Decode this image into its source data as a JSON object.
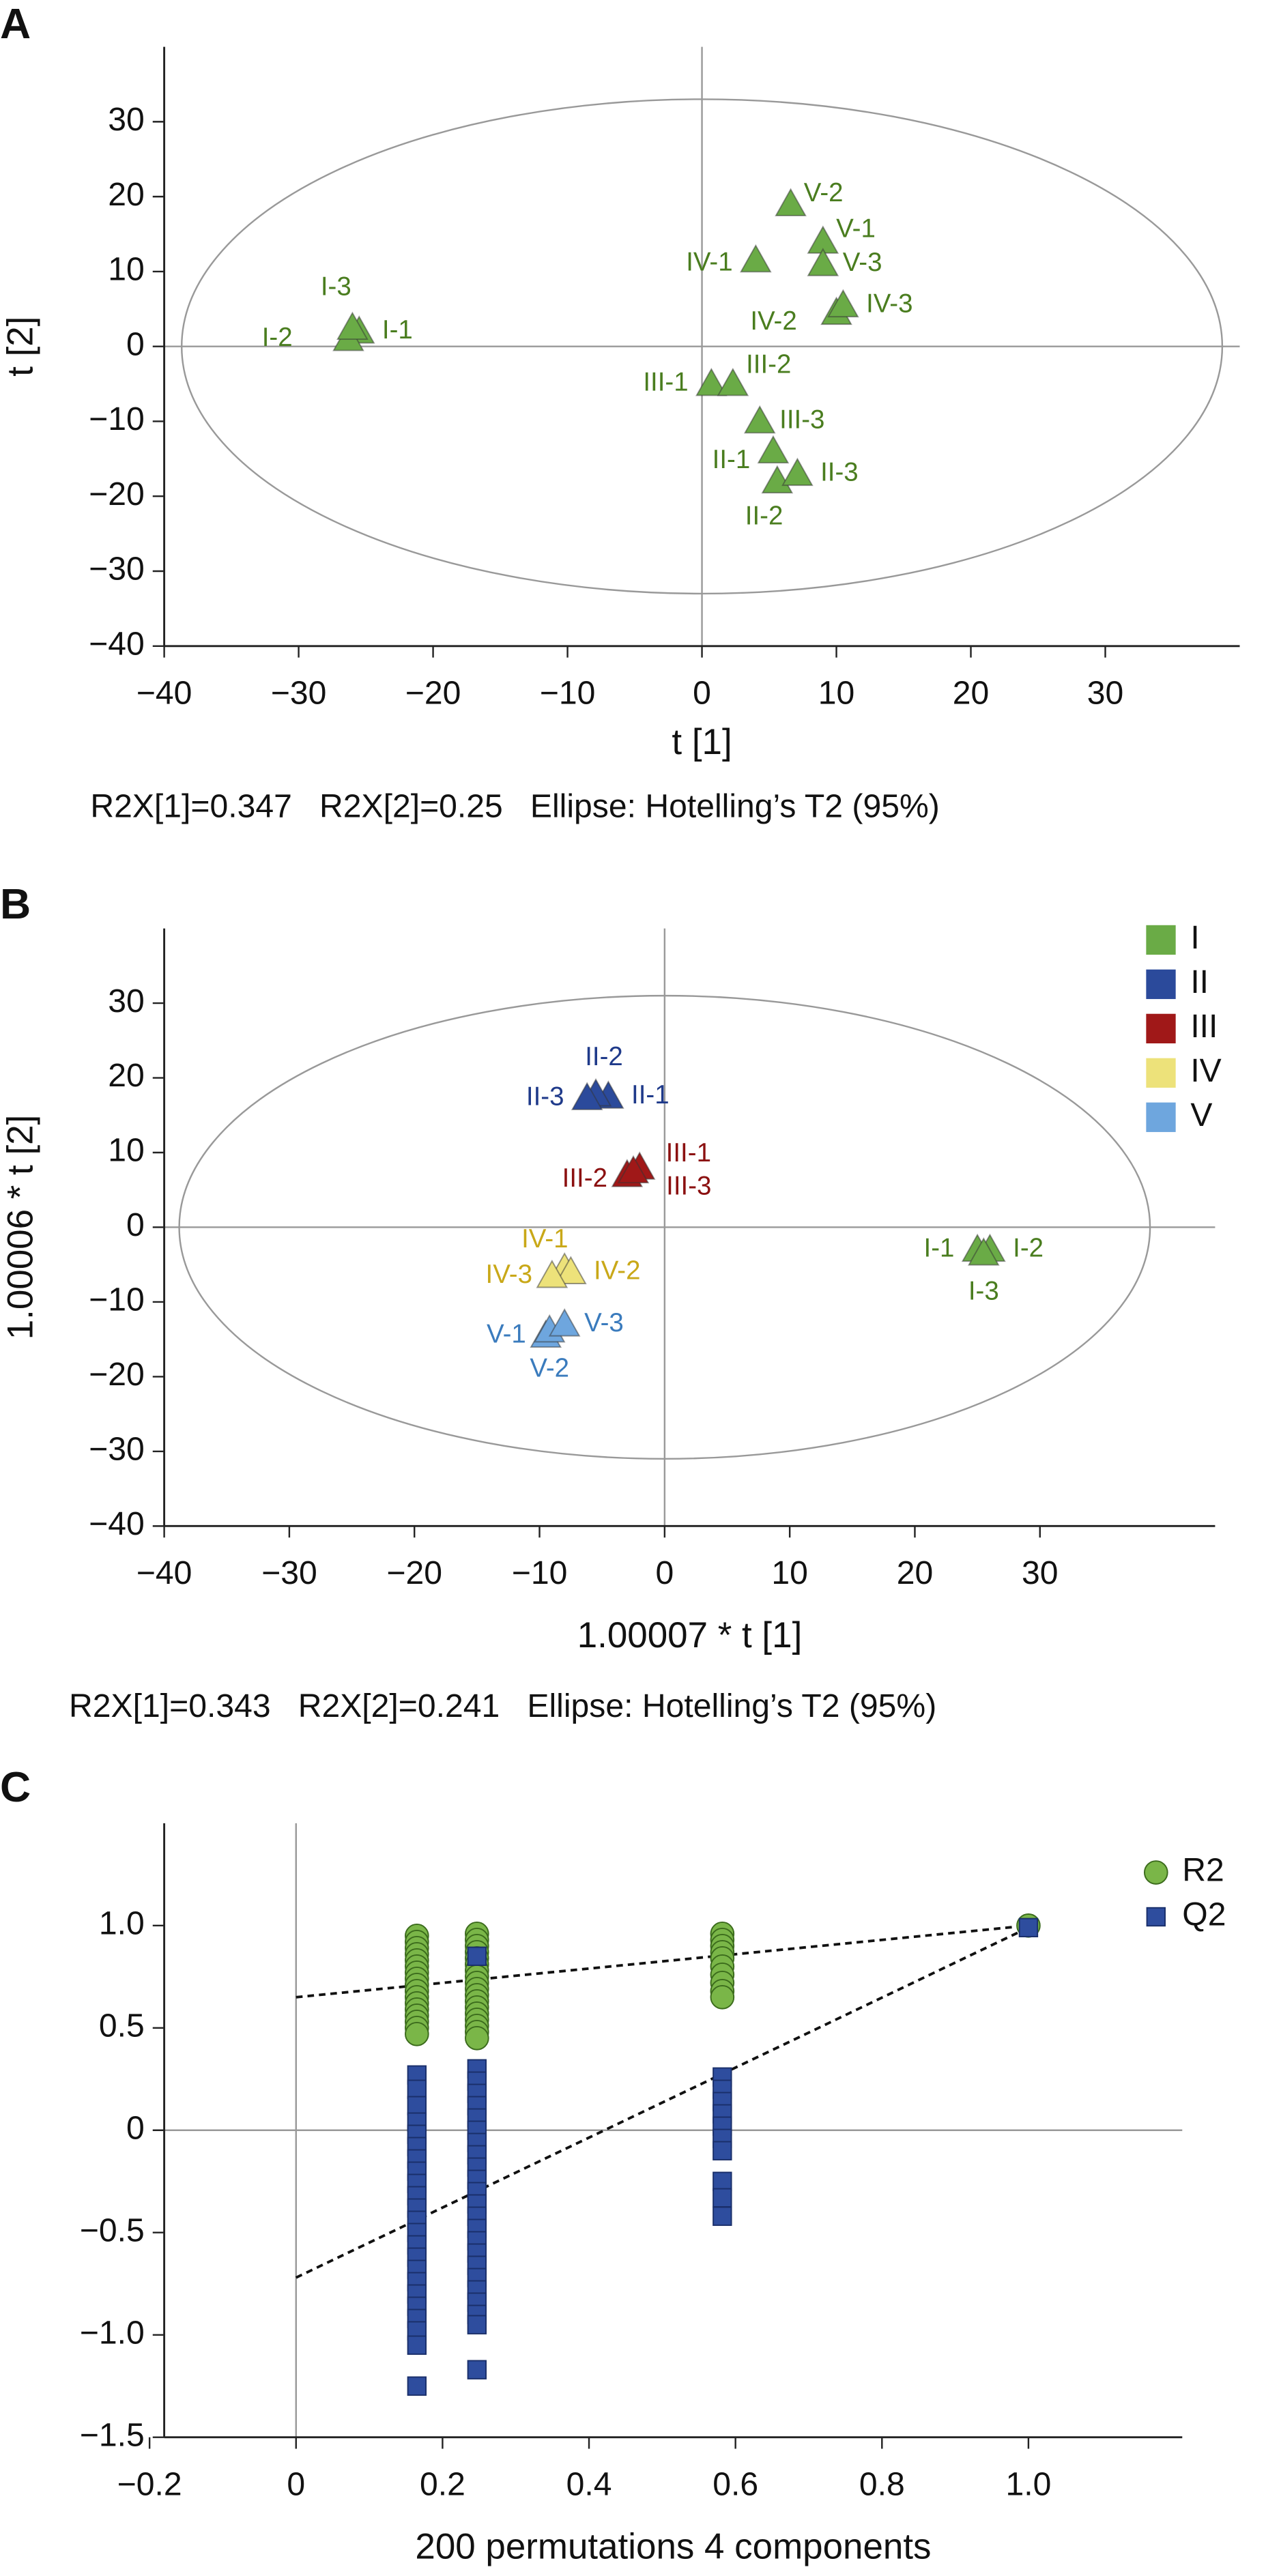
{
  "chart_data": [
    {
      "type": "scatter",
      "panel": "A",
      "x_label": "t [1]",
      "y_label": "t [2]",
      "caption": "R2X[1]=0.347   R2X[2]=0.25   Ellipse: Hotelling’s T2 (95%)",
      "xlim": [
        -40,
        40
      ],
      "ylim": [
        -40,
        40
      ],
      "xticks": [
        {
          "value": -40,
          "label": "−40"
        },
        {
          "value": -30,
          "label": "−30"
        },
        {
          "value": -20,
          "label": "−20"
        },
        {
          "value": -10,
          "label": "−10"
        },
        0,
        10,
        20,
        30
      ],
      "yticks": [
        {
          "value": -40,
          "label": "−40"
        },
        {
          "value": -30,
          "label": "−30"
        },
        {
          "value": -20,
          "label": "−20"
        },
        {
          "value": -10,
          "label": "−10"
        },
        0,
        10,
        20,
        30
      ],
      "ellipse_radii": [
        38.7,
        33
      ],
      "series": [
        {
          "color": "#6aab46",
          "label_color": "#4a7d1f",
          "marker": "triangle",
          "labels": [
            "I-1",
            "I-2",
            "I-3",
            "II-1",
            "II-2",
            "II-3",
            "III-1",
            "III-2",
            "III-3",
            "IV-1",
            "IV-2",
            "IV-3",
            "V-1",
            "V-2",
            "V-3"
          ],
          "x": [
            -25.5,
            -26.3,
            -26,
            5.3,
            5.6,
            7.1,
            0.7,
            2.3,
            4.3,
            4,
            10,
            10.5,
            9,
            6.6,
            9
          ],
          "values": [
            2,
            1,
            2.5,
            -14,
            -18,
            -17,
            -5,
            -5,
            -10,
            11.5,
            4.5,
            5.5,
            14,
            19,
            11
          ]
        }
      ]
    },
    {
      "type": "scatter",
      "panel": "B",
      "x_label": "1.00007 * t [1]",
      "y_label": "1.00006 * t [2]",
      "caption": "R2X[1]=0.343   R2X[2]=0.241   Ellipse: Hotelling’s T2 (95%)",
      "xlim": [
        -40,
        44
      ],
      "ylim": [
        -40,
        40
      ],
      "xticks": [
        {
          "value": -40,
          "label": "−40"
        },
        {
          "value": -30,
          "label": "−30"
        },
        {
          "value": -20,
          "label": "−20"
        },
        {
          "value": -10,
          "label": "−10"
        },
        0,
        10,
        20,
        30
      ],
      "yticks": [
        {
          "value": -40,
          "label": "−40"
        },
        {
          "value": -30,
          "label": "−30"
        },
        {
          "value": -20,
          "label": "−20"
        },
        {
          "value": -10,
          "label": "−10"
        },
        0,
        10,
        20,
        30
      ],
      "ellipse_radii": [
        38.8,
        31
      ],
      "legend": "top-right",
      "series": [
        {
          "name": "I",
          "color": "#6aab46",
          "label_color": "#4a7d1f",
          "marker": "triangle",
          "labels": [
            "I-1",
            "I-2",
            "I-3"
          ],
          "x": [
            25,
            26,
            25.5
          ],
          "values": [
            -3,
            -3,
            -3.5
          ]
        },
        {
          "name": "II",
          "color": "#2b4a9b",
          "label_color": "#1f3a8a",
          "marker": "triangle",
          "labels": [
            "II-1",
            "II-2",
            "II-3"
          ],
          "x": [
            -4.5,
            -5.5,
            -6.2
          ],
          "values": [
            17.5,
            17.8,
            17.3
          ]
        },
        {
          "name": "III",
          "color": "#a01818",
          "label_color": "#8b1010",
          "marker": "triangle",
          "labels": [
            "III-1",
            "III-2",
            "III-3"
          ],
          "x": [
            -2,
            -3,
            -2.5
          ],
          "values": [
            8,
            7,
            7.5
          ]
        },
        {
          "name": "IV",
          "color": "#ede27a",
          "label_color": "#c9a818",
          "marker": "triangle",
          "labels": [
            "IV-1",
            "IV-2",
            "IV-3"
          ],
          "x": [
            -8,
            -7.5,
            -9
          ],
          "values": [
            -5.5,
            -6,
            -6.5
          ]
        },
        {
          "name": "V",
          "color": "#6ea6de",
          "label_color": "#3a7bbd",
          "marker": "triangle",
          "labels": [
            "V-1",
            "V-2",
            "V-3"
          ],
          "x": [
            -9.5,
            -9.2,
            -8
          ],
          "values": [
            -14.5,
            -13.8,
            -13
          ]
        }
      ]
    },
    {
      "type": "scatter",
      "panel": "C",
      "x_label": "200 permutations 4 components",
      "xlim": [
        -0.18,
        1.21
      ],
      "ylim": [
        -1.5,
        1.5
      ],
      "xticks": [
        {
          "value": -0.2,
          "label": "−0.2"
        },
        0,
        0.2,
        0.4,
        0.6,
        0.8,
        {
          "value": 1,
          "label": "1.0"
        }
      ],
      "yticks": [
        {
          "value": -1.5,
          "label": "−1.5"
        },
        {
          "value": -1,
          "label": "−1.0"
        },
        {
          "value": -0.5,
          "label": "−0.5"
        },
        0,
        0.5,
        {
          "value": 1,
          "label": "1.0"
        }
      ],
      "legend": "top-right",
      "series": [
        {
          "name": "R2",
          "color": "#7ab648",
          "marker": "circle",
          "intercept": 0.65,
          "x": [
            0.165,
            0.165,
            0.165,
            0.165,
            0.165,
            0.165,
            0.165,
            0.165,
            0.165,
            0.165,
            0.165,
            0.165,
            0.165,
            0.165,
            0.165,
            0.165,
            0.165,
            0.247,
            0.247,
            0.247,
            0.247,
            0.247,
            0.247,
            0.247,
            0.247,
            0.247,
            0.247,
            0.247,
            0.247,
            0.247,
            0.247,
            0.247,
            0.247,
            0.247,
            0.247,
            0.582,
            0.582,
            0.582,
            0.582,
            0.582,
            0.582,
            0.582,
            0.582,
            0.582,
            0.582,
            1
          ],
          "values": [
            0.95,
            0.92,
            0.89,
            0.86,
            0.83,
            0.8,
            0.77,
            0.74,
            0.71,
            0.68,
            0.65,
            0.62,
            0.59,
            0.56,
            0.53,
            0.5,
            0.47,
            0.96,
            0.93,
            0.9,
            0.87,
            0.84,
            0.81,
            0.78,
            0.75,
            0.72,
            0.69,
            0.66,
            0.63,
            0.6,
            0.57,
            0.54,
            0.51,
            0.48,
            0.45,
            0.96,
            0.93,
            0.9,
            0.87,
            0.84,
            0.8,
            0.76,
            0.72,
            0.68,
            0.65,
            1
          ]
        },
        {
          "name": "Q2",
          "color": "#2e4d9e",
          "marker": "square",
          "intercept": -0.72,
          "x": [
            0.165,
            0.165,
            0.165,
            0.165,
            0.165,
            0.165,
            0.165,
            0.165,
            0.165,
            0.165,
            0.165,
            0.165,
            0.165,
            0.165,
            0.165,
            0.165,
            0.165,
            0.165,
            0.165,
            0.165,
            0.165,
            0.165,
            0.165,
            0.247,
            0.247,
            0.247,
            0.247,
            0.247,
            0.247,
            0.247,
            0.247,
            0.247,
            0.247,
            0.247,
            0.247,
            0.247,
            0.247,
            0.247,
            0.247,
            0.247,
            0.247,
            0.247,
            0.247,
            0.247,
            0.247,
            0.247,
            0.247,
            0.582,
            0.582,
            0.582,
            0.582,
            0.582,
            0.582,
            0.582,
            0.582,
            0.582,
            0.582,
            1
          ],
          "values": [
            0.27,
            0.2,
            0.12,
            0.04,
            -0.02,
            -0.08,
            -0.14,
            -0.2,
            -0.26,
            -0.32,
            -0.38,
            -0.44,
            -0.5,
            -0.56,
            -0.62,
            -0.68,
            -0.74,
            -0.8,
            -0.86,
            -0.92,
            -0.98,
            -1.05,
            -1.25,
            0.85,
            0.3,
            0.24,
            0.18,
            0.12,
            0.06,
            0,
            -0.06,
            -0.12,
            -0.18,
            -0.24,
            -0.3,
            -0.36,
            -0.42,
            -0.48,
            -0.54,
            -0.6,
            -0.66,
            -0.72,
            -0.78,
            -0.84,
            -0.9,
            -0.95,
            -1.17,
            0.26,
            0.2,
            0.14,
            0.08,
            0.02,
            -0.04,
            -0.1,
            -0.25,
            -0.33,
            -0.42,
            0.99
          ]
        }
      ]
    }
  ]
}
